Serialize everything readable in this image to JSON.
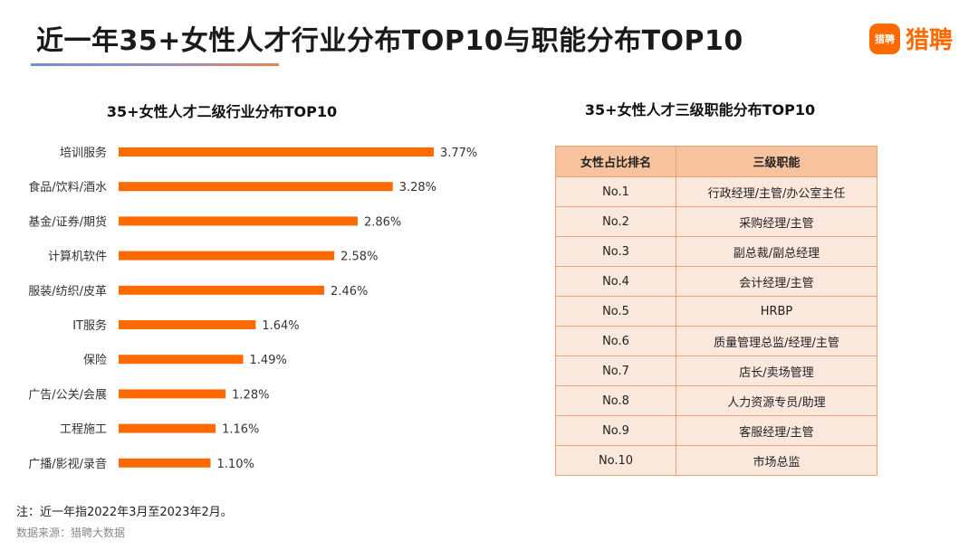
{
  "header": {
    "title": "近一年35+女性人才行业分布TOP10与职能分布TOP10",
    "logo_badge": "猎聘",
    "logo_text": "猎聘"
  },
  "colors": {
    "bar": "#ff6a00",
    "table_header_bg": "#f7c39e",
    "table_cell_bg": "#fbe8dd",
    "table_border": "#f0a072"
  },
  "chart_data": {
    "type": "bar",
    "orientation": "horizontal",
    "title": "35+女性人才二级行业分布TOP10",
    "categories": [
      "培训服务",
      "食品/饮料/酒水",
      "基金/证券/期货",
      "计算机软件",
      "服装/纺织/皮革",
      "IT服务",
      "保险",
      "广告/公关/会展",
      "工程施工",
      "广播/影视/录音"
    ],
    "values": [
      3.77,
      3.28,
      2.86,
      2.58,
      2.46,
      1.64,
      1.49,
      1.28,
      1.16,
      1.1
    ],
    "value_labels": [
      "3.77%",
      "3.28%",
      "2.86%",
      "2.58%",
      "2.46%",
      "1.64%",
      "1.49%",
      "1.28%",
      "1.16%",
      "1.10%"
    ],
    "unit": "%",
    "xlim": [
      0,
      4
    ],
    "grid": false
  },
  "table": {
    "title": "35+女性人才三级职能分布TOP10",
    "headers": [
      "女性占比排名",
      "三级职能"
    ],
    "rows": [
      [
        "No.1",
        "行政经理/主管/办公室主任"
      ],
      [
        "No.2",
        "采购经理/主管"
      ],
      [
        "No.3",
        "副总裁/副总经理"
      ],
      [
        "No.4",
        "会计经理/主管"
      ],
      [
        "No.5",
        "HRBP"
      ],
      [
        "No.6",
        "质量管理总监/经理/主管"
      ],
      [
        "No.7",
        "店长/卖场管理"
      ],
      [
        "No.8",
        "人力资源专员/助理"
      ],
      [
        "No.9",
        "客服经理/主管"
      ],
      [
        "No.10",
        "市场总监"
      ]
    ]
  },
  "footer": {
    "note": "注：近一年指2022年3月至2023年2月。",
    "source": "数据来源：猎聘大数据"
  }
}
